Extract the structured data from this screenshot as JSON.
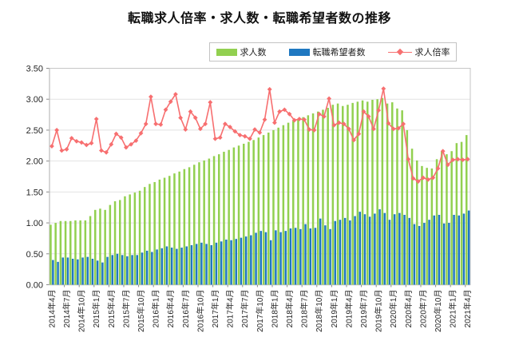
{
  "title": "転職求人倍率・求人数・転職希望者数の推移",
  "legend": {
    "items": [
      {
        "label": "求人数",
        "type": "bar",
        "color": "#92d050"
      },
      {
        "label": "転職希望者数",
        "type": "bar",
        "color": "#1f78c1"
      },
      {
        "label": "求人倍率",
        "type": "line",
        "color": "#f76f70"
      }
    ]
  },
  "colors": {
    "kyujin_bar": "#92d050",
    "kibousha_bar": "#1f78c1",
    "bairitsu_line": "#f76f70",
    "gridline": "#e2e2e2",
    "plot_border": "#c6c6c6",
    "axis": "#8c8c8c",
    "tick_label": "#262626"
  },
  "chart_data": {
    "type": "bar",
    "subtype": "monthly bars with overlaid line (combo chart)",
    "title": "転職求人倍率・求人数・転職希望者数の推移",
    "xlabel": "",
    "ylabel": "",
    "ylim": [
      0,
      3.5
    ],
    "grid": true,
    "legend_position": "top",
    "y_ticks": [
      "0.00",
      "0.50",
      "1.00",
      "1.50",
      "2.00",
      "2.50",
      "3.00",
      "3.50"
    ],
    "x_tick_labels": [
      "2014年4月",
      "2014年7月",
      "2014年10月",
      "2015年1月",
      "2015年4月",
      "2015年7月",
      "2015年10月",
      "2016年1月",
      "2016年4月",
      "2016年7月",
      "2016年10月",
      "2017年1月",
      "2017年4月",
      "2017年7月",
      "2017年10月",
      "2018年1月",
      "2018年4月",
      "2018年7月",
      "2018年10月",
      "2019年1月",
      "2019年4月",
      "2019年7月",
      "2019年10月",
      "2020年1月",
      "2020年4月",
      "2020年7月",
      "2020年10月",
      "2021年1月",
      "2021年4月"
    ],
    "x": [
      "2014-04",
      "2014-05",
      "2014-06",
      "2014-07",
      "2014-08",
      "2014-09",
      "2014-10",
      "2014-11",
      "2014-12",
      "2015-01",
      "2015-02",
      "2015-03",
      "2015-04",
      "2015-05",
      "2015-06",
      "2015-07",
      "2015-08",
      "2015-09",
      "2015-10",
      "2015-11",
      "2015-12",
      "2016-01",
      "2016-02",
      "2016-03",
      "2016-04",
      "2016-05",
      "2016-06",
      "2016-07",
      "2016-08",
      "2016-09",
      "2016-10",
      "2016-11",
      "2016-12",
      "2017-01",
      "2017-02",
      "2017-03",
      "2017-04",
      "2017-05",
      "2017-06",
      "2017-07",
      "2017-08",
      "2017-09",
      "2017-10",
      "2017-11",
      "2017-12",
      "2018-01",
      "2018-02",
      "2018-03",
      "2018-04",
      "2018-05",
      "2018-06",
      "2018-07",
      "2018-08",
      "2018-09",
      "2018-10",
      "2018-11",
      "2018-12",
      "2019-01",
      "2019-02",
      "2019-03",
      "2019-04",
      "2019-05",
      "2019-06",
      "2019-07",
      "2019-08",
      "2019-09",
      "2019-10",
      "2019-11",
      "2019-12",
      "2020-01",
      "2020-02",
      "2020-03",
      "2020-04",
      "2020-05",
      "2020-06",
      "2020-07",
      "2020-08",
      "2020-09",
      "2020-10",
      "2020-11",
      "2020-12",
      "2021-01",
      "2021-02",
      "2021-03",
      "2021-04"
    ],
    "series": [
      {
        "name": "求人数",
        "type": "bar",
        "color": "#92d050",
        "values": [
          0.97,
          1.0,
          1.03,
          1.03,
          1.03,
          1.04,
          1.04,
          1.04,
          1.11,
          1.21,
          1.23,
          1.21,
          1.29,
          1.35,
          1.37,
          1.43,
          1.46,
          1.49,
          1.52,
          1.58,
          1.63,
          1.66,
          1.7,
          1.73,
          1.76,
          1.8,
          1.83,
          1.87,
          1.9,
          1.94,
          1.98,
          2.01,
          2.04,
          2.08,
          2.11,
          2.15,
          2.18,
          2.22,
          2.25,
          2.28,
          2.31,
          2.34,
          2.38,
          2.42,
          2.46,
          2.5,
          2.54,
          2.58,
          2.62,
          2.65,
          2.68,
          2.71,
          2.74,
          2.77,
          2.8,
          2.83,
          2.86,
          2.91,
          2.93,
          2.89,
          2.91,
          2.94,
          2.96,
          2.98,
          2.96,
          2.99,
          3.0,
          3.02,
          2.93,
          2.95,
          2.85,
          2.82,
          2.5,
          2.2,
          2.01,
          1.92,
          1.89,
          1.88,
          2.03,
          2.16,
          2.11,
          2.16,
          2.29,
          2.31,
          2.42
        ]
      },
      {
        "name": "転職希望者数",
        "type": "bar",
        "color": "#1f78c1",
        "values": [
          0.4,
          0.37,
          0.44,
          0.44,
          0.42,
          0.41,
          0.44,
          0.45,
          0.42,
          0.39,
          0.36,
          0.45,
          0.48,
          0.5,
          0.48,
          0.46,
          0.48,
          0.48,
          0.52,
          0.55,
          0.53,
          0.57,
          0.59,
          0.62,
          0.6,
          0.58,
          0.6,
          0.62,
          0.64,
          0.66,
          0.68,
          0.66,
          0.64,
          0.68,
          0.7,
          0.73,
          0.72,
          0.74,
          0.76,
          0.78,
          0.8,
          0.84,
          0.87,
          0.85,
          0.72,
          0.88,
          0.85,
          0.87,
          0.91,
          0.92,
          0.9,
          0.98,
          0.91,
          0.92,
          1.07,
          0.96,
          0.9,
          1.03,
          1.05,
          1.08,
          1.04,
          1.11,
          1.18,
          1.14,
          1.1,
          1.15,
          1.22,
          1.16,
          1.05,
          1.14,
          1.16,
          1.13,
          1.08,
          0.98,
          0.95,
          1.0,
          1.05,
          1.12,
          1.13,
          0.99,
          1.0,
          1.13,
          1.12,
          1.15,
          1.2
        ]
      },
      {
        "name": "求人倍率",
        "type": "line",
        "color": "#f76f70",
        "marker": "diamond",
        "values": [
          2.24,
          2.5,
          2.17,
          2.19,
          2.37,
          2.32,
          2.3,
          2.26,
          2.29,
          2.68,
          2.17,
          2.14,
          2.27,
          2.44,
          2.38,
          2.22,
          2.27,
          2.33,
          2.45,
          2.6,
          3.04,
          2.6,
          2.59,
          2.83,
          2.96,
          3.08,
          2.7,
          2.51,
          2.8,
          2.7,
          2.52,
          2.6,
          2.95,
          2.36,
          2.38,
          2.6,
          2.55,
          2.48,
          2.42,
          2.4,
          2.36,
          2.51,
          2.46,
          2.67,
          3.16,
          2.62,
          2.8,
          2.83,
          2.76,
          2.66,
          2.68,
          2.67,
          2.51,
          2.5,
          2.76,
          2.72,
          3.01,
          2.58,
          2.62,
          2.6,
          2.52,
          2.34,
          2.44,
          2.8,
          2.72,
          2.52,
          2.82,
          3.17,
          2.61,
          2.52,
          2.53,
          2.6,
          2.03,
          1.72,
          1.67,
          1.73,
          1.7,
          1.73,
          1.88,
          2.16,
          1.94,
          2.02,
          2.03,
          2.02,
          2.03
        ]
      }
    ]
  }
}
